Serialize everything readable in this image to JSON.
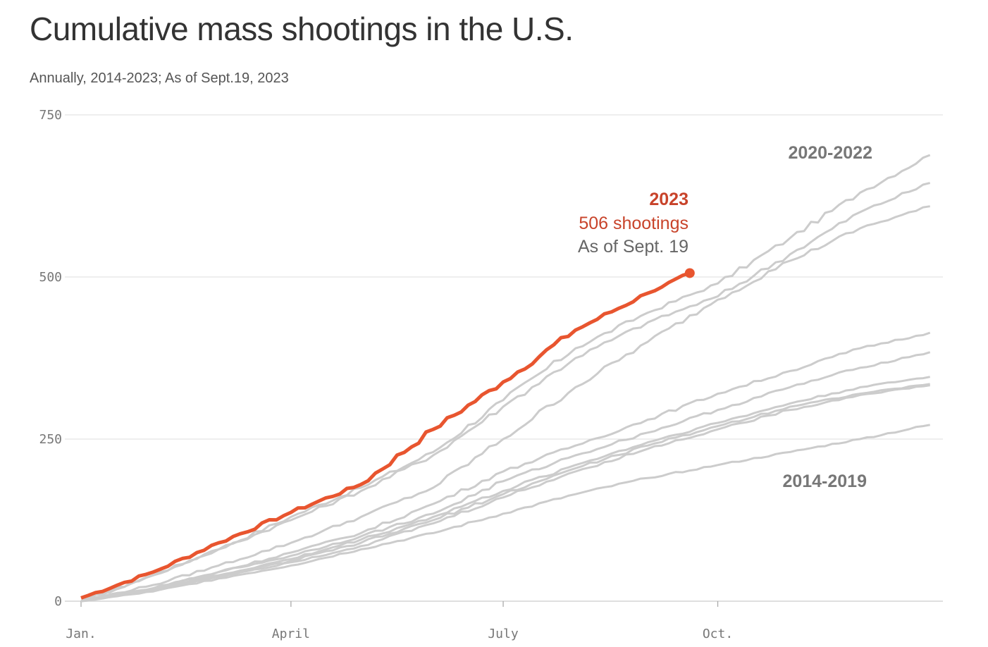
{
  "chart_data": {
    "type": "line",
    "title": "Cumulative mass shootings in the U.S.",
    "subtitle": "Annually, 2014-2023; As of Sept.19, 2023",
    "xlabel": "",
    "ylabel": "",
    "x_unit": "day of year",
    "xlim": [
      0,
      365
    ],
    "ylim": [
      0,
      750
    ],
    "y_ticks": [
      0,
      250,
      500,
      750
    ],
    "x_ticks": [
      {
        "day": 0,
        "label": "Jan."
      },
      {
        "day": 90,
        "label": "April"
      },
      {
        "day": 181,
        "label": "July"
      },
      {
        "day": 273,
        "label": "Oct."
      }
    ],
    "grid": "horizontal",
    "colors": {
      "highlight": "#e8552f",
      "other": "#cccccc"
    },
    "gray_days": [
      0,
      31,
      59,
      90,
      120,
      151,
      181,
      212,
      243,
      273,
      304,
      334,
      364
    ],
    "series": [
      {
        "group": "2020-2022",
        "values": [
          0,
          40,
          80,
          130,
          175,
          230,
          310,
          390,
          445,
          490,
          560,
          630,
          688
        ]
      },
      {
        "group": "2020-2022",
        "values": [
          0,
          40,
          80,
          125,
          170,
          225,
          300,
          375,
          430,
          470,
          535,
          600,
          645
        ]
      },
      {
        "group": "2020-2022",
        "values": [
          0,
          25,
          55,
          90,
          130,
          175,
          250,
          330,
          400,
          465,
          525,
          575,
          609
        ]
      },
      {
        "group": "2014-2019",
        "values": [
          0,
          20,
          45,
          75,
          105,
          150,
          200,
          240,
          280,
          320,
          355,
          390,
          414
        ]
      },
      {
        "group": "2014-2019",
        "values": [
          0,
          20,
          45,
          70,
          100,
          135,
          185,
          225,
          260,
          295,
          330,
          360,
          384
        ]
      },
      {
        "group": "2014-2019",
        "values": [
          0,
          20,
          40,
          65,
          95,
          130,
          170,
          210,
          245,
          275,
          305,
          330,
          346
        ]
      },
      {
        "group": "2014-2019",
        "values": [
          0,
          18,
          38,
          62,
          90,
          125,
          165,
          205,
          240,
          270,
          300,
          320,
          335
        ]
      },
      {
        "group": "2014-2019",
        "values": [
          0,
          18,
          38,
          60,
          85,
          120,
          160,
          200,
          235,
          265,
          295,
          318,
          333
        ]
      },
      {
        "group": "2014-2019",
        "values": [
          0,
          15,
          35,
          55,
          80,
          105,
          135,
          165,
          190,
          210,
          230,
          250,
          272
        ]
      }
    ],
    "highlight": {
      "name": "2023",
      "days": [
        0,
        31,
        59,
        90,
        120,
        151,
        181,
        212,
        243,
        261
      ],
      "values": [
        5,
        45,
        90,
        137,
        180,
        265,
        338,
        418,
        475,
        506
      ]
    },
    "annotations": {
      "group_recent": "2020-2022",
      "group_old": "2014-2019",
      "year": "2023",
      "value": "506 shootings",
      "date": "As of Sept. 19"
    }
  }
}
